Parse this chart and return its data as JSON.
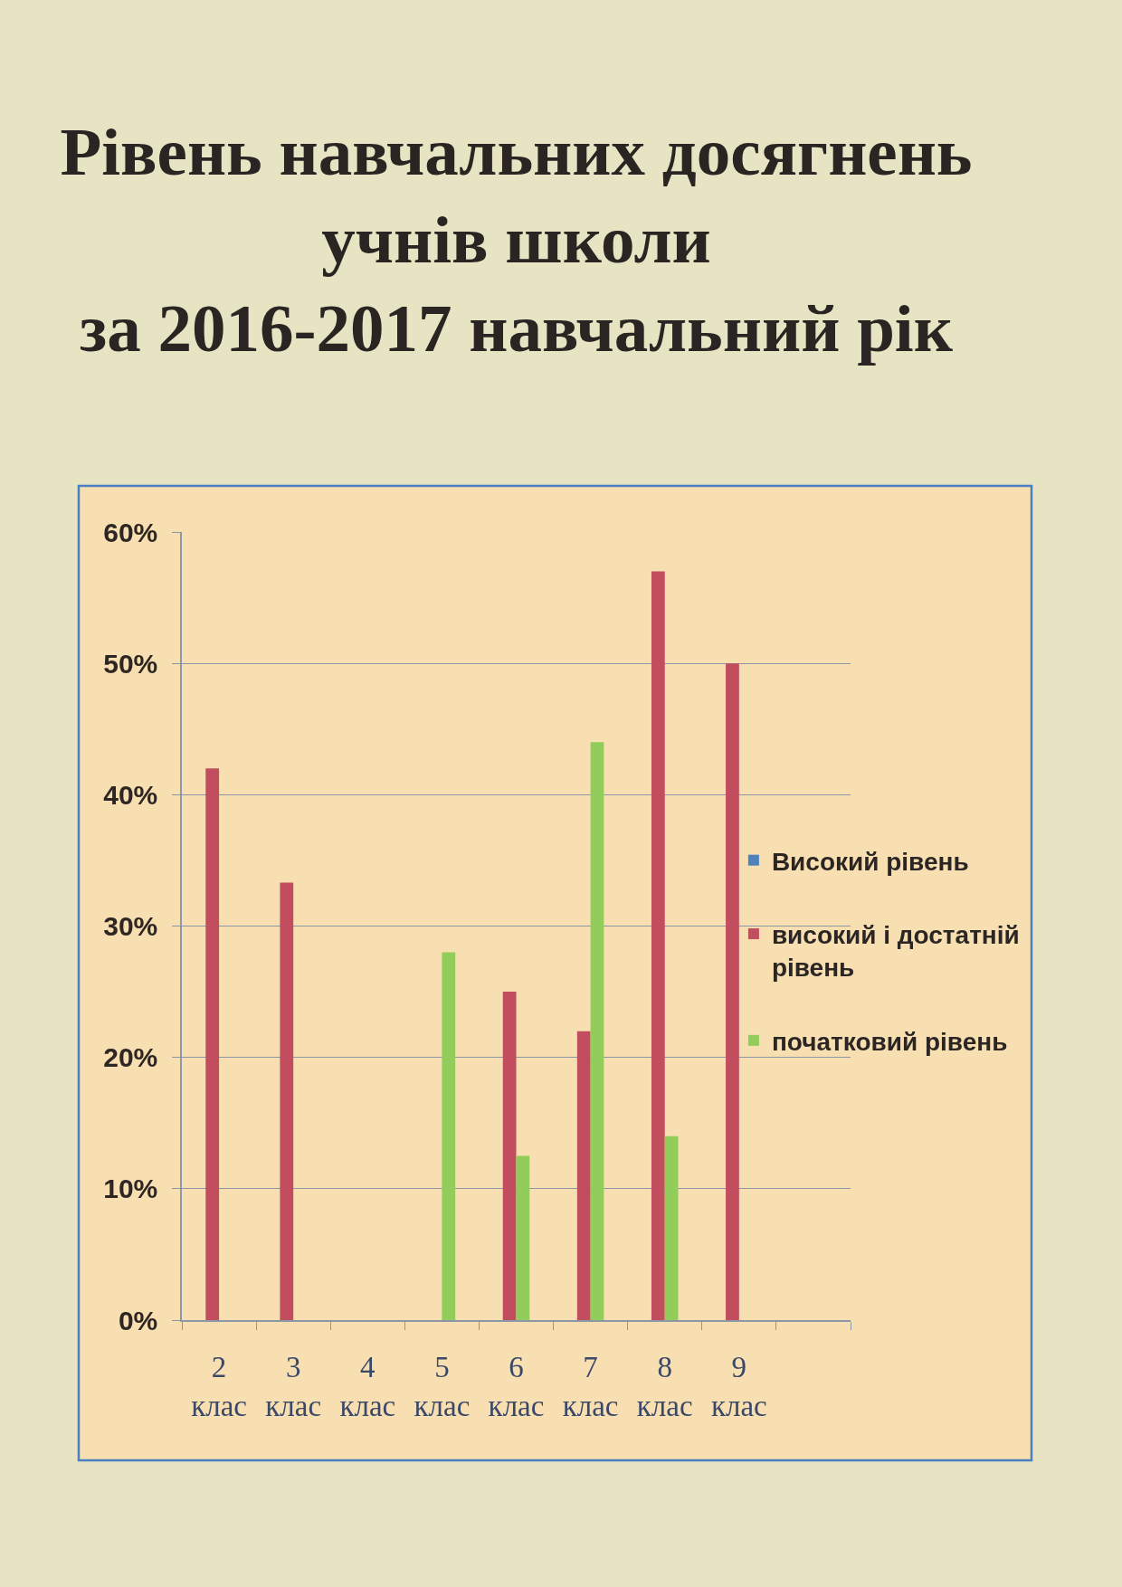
{
  "chart_data": {
    "type": "bar",
    "title": "Рівень навчальних досягнень\nучнів школи\nза 2016-2017 навчальний рік",
    "categories": [
      "2 клас",
      "3 клас",
      "4 клас",
      "5 клас",
      "6 клас",
      "7 клас",
      "8 клас",
      "9 клас",
      null
    ],
    "series": [
      {
        "name": "Високий рівень",
        "color": "#4f81bd",
        "values": [
          null,
          null,
          null,
          null,
          null,
          null,
          null,
          null,
          null
        ]
      },
      {
        "name": "високий і достатній рівень",
        "color": "#c24d5f",
        "values": [
          42,
          33.3,
          null,
          null,
          25,
          22,
          57,
          50,
          null
        ]
      },
      {
        "name": "початковий рівень",
        "color": "#92cc5a",
        "values": [
          null,
          null,
          null,
          28,
          12.5,
          44,
          14,
          null,
          null
        ]
      }
    ],
    "ylim": [
      0,
      60
    ],
    "yticks": [
      {
        "value": 0,
        "label": "0%"
      },
      {
        "value": 10,
        "label": "10%"
      },
      {
        "value": 20,
        "label": "20%"
      },
      {
        "value": 30,
        "label": "30%"
      },
      {
        "value": 40,
        "label": "40%"
      },
      {
        "value": 50,
        "label": "50%"
      },
      {
        "value": 60,
        "label": "60%"
      }
    ],
    "grid": "y",
    "legend": "right"
  }
}
